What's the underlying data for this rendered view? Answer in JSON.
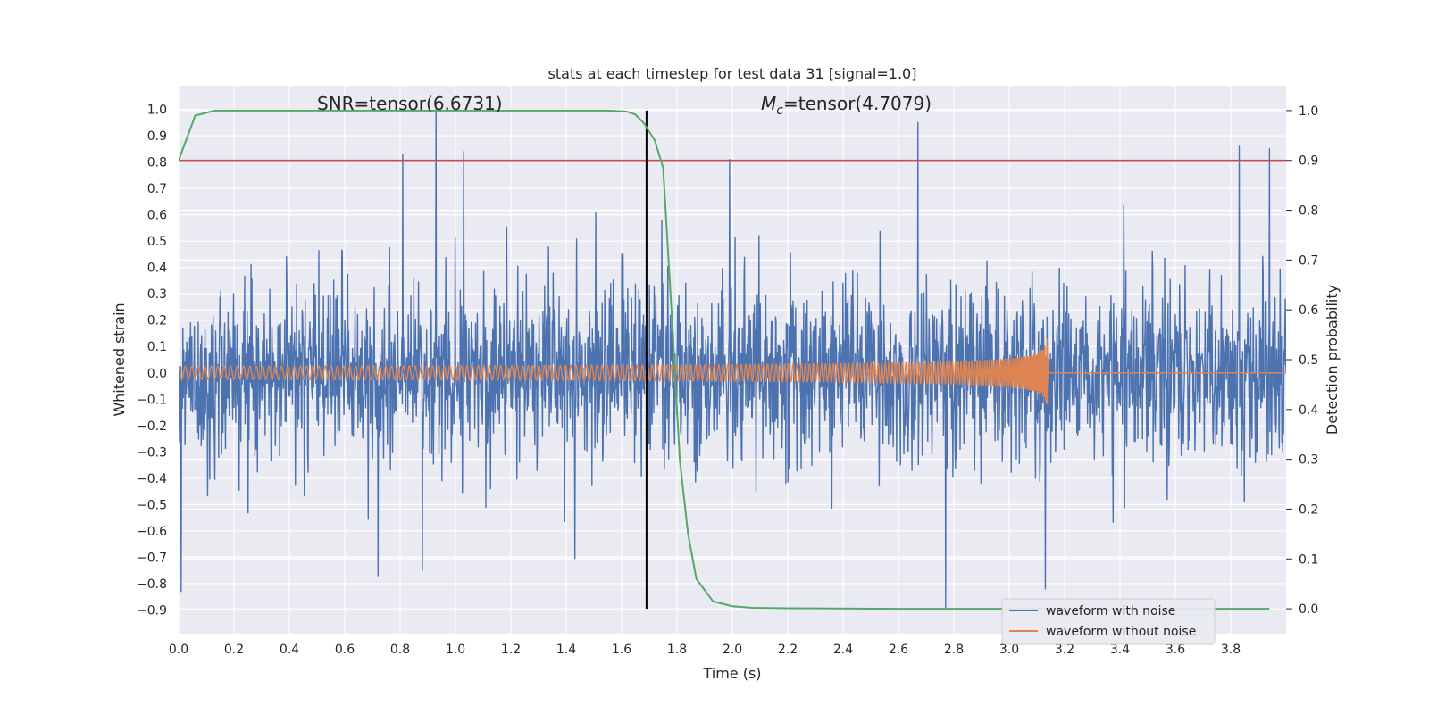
{
  "chart_data": {
    "type": "line",
    "title": "stats at each timestep for test data 31 [signal=1.0]",
    "xlabel": "Time (s)",
    "ylabel_left": "Whitened strain",
    "ylabel_right": "Detection probability",
    "xlim": [
      0.0,
      4.0
    ],
    "ylim_left": [
      -0.99,
      1.09
    ],
    "ylim_right": [
      -0.05,
      1.05
    ],
    "x_ticks": [
      0.0,
      0.2,
      0.4,
      0.6,
      0.8,
      1.0,
      1.2,
      1.4,
      1.6,
      1.8,
      2.0,
      2.2,
      2.4,
      2.6,
      2.8,
      3.0,
      3.2,
      3.4,
      3.6,
      3.8
    ],
    "x_tick_labels": [
      "0.0",
      "0.2",
      "0.4",
      "0.6",
      "0.8",
      "1.0",
      "1.2",
      "1.4",
      "1.6",
      "1.8",
      "2.0",
      "2.2",
      "2.4",
      "2.6",
      "2.8",
      "3.0",
      "3.2",
      "3.4",
      "3.6",
      "3.8"
    ],
    "y_left_ticks": [
      1.0,
      0.9,
      0.8,
      0.7,
      0.6,
      0.5,
      0.4,
      0.3,
      0.2,
      0.1,
      0.0,
      -0.1,
      -0.2,
      -0.3,
      -0.4,
      -0.5,
      -0.6,
      -0.7,
      -0.8,
      -0.9
    ],
    "y_left_tick_labels": [
      "1.0",
      "0.9",
      "0.8",
      "0.7",
      "0.6",
      "0.5",
      "0.4",
      "0.3",
      "0.2",
      "0.1",
      "0.0",
      "−0.1",
      "−0.2",
      "−0.3",
      "−0.4",
      "−0.5",
      "−0.6",
      "−0.7",
      "−0.8",
      "−0.9"
    ],
    "y_right_ticks": [
      1.0,
      0.9,
      0.8,
      0.7,
      0.6,
      0.5,
      0.4,
      0.3,
      0.2,
      0.1,
      0.0
    ],
    "y_right_tick_labels": [
      "1.0",
      "0.9",
      "0.8",
      "0.7",
      "0.6",
      "0.5",
      "0.4",
      "0.3",
      "0.2",
      "0.1",
      "0.0"
    ],
    "annotations": {
      "snr": "SNR=tensor(6.6731)",
      "mc_symbol": "M",
      "mc_subscript": "c",
      "mc_value": "=tensor(4.7079)"
    },
    "series": [
      {
        "name": "waveform with noise",
        "color": "#4c72b0",
        "axis": "left",
        "description_type": "noise",
        "x_range": [
          0.0,
          4.0
        ],
        "typical_amplitude": 0.45,
        "notable_peaks": [
          {
            "x": 0.93,
            "y": 1.0
          },
          {
            "x": 1.03,
            "y": 0.84
          },
          {
            "x": 0.81,
            "y": 0.83
          },
          {
            "x": 2.67,
            "y": 0.95
          },
          {
            "x": 1.99,
            "y": 0.81
          },
          {
            "x": 3.83,
            "y": 0.86
          },
          {
            "x": 3.94,
            "y": 0.85
          },
          {
            "x": 0.01,
            "y": -0.83
          },
          {
            "x": 2.77,
            "y": -0.89
          },
          {
            "x": 3.13,
            "y": -0.82
          },
          {
            "x": 0.72,
            "y": -0.77
          },
          {
            "x": 0.88,
            "y": -0.75
          }
        ]
      },
      {
        "name": "waveform without noise",
        "color": "#dd8452",
        "axis": "left",
        "description_type": "chirp",
        "x_range": [
          0.0,
          3.14
        ],
        "start_amplitude": 0.025,
        "merger_time": 3.14,
        "peak_amplitude": 0.18,
        "post_merger_value": 0.0
      },
      {
        "name": "detection probability",
        "color": "#55a868",
        "axis": "right",
        "x": [
          0.0,
          0.06,
          0.13,
          0.2,
          0.4,
          0.6,
          0.8,
          1.0,
          1.2,
          1.4,
          1.55,
          1.62,
          1.65,
          1.68,
          1.72,
          1.75,
          1.78,
          1.81,
          1.84,
          1.87,
          1.93,
          2.0,
          2.07,
          2.2,
          2.6,
          3.0,
          3.5,
          3.94
        ],
        "y": [
          0.9,
          0.99,
          1.0,
          1.0,
          1.0,
          1.0,
          1.0,
          1.0,
          1.0,
          1.0,
          1.0,
          0.998,
          0.992,
          0.975,
          0.94,
          0.885,
          0.6,
          0.3,
          0.15,
          0.06,
          0.015,
          0.005,
          0.002,
          0.001,
          0.0,
          0.0,
          0.0,
          0.0
        ]
      }
    ],
    "reference_lines": [
      {
        "orientation": "horizontal",
        "axis": "right",
        "value": 0.9,
        "color": "#c44e52"
      },
      {
        "orientation": "vertical",
        "value": 1.69,
        "color": "#000000",
        "y_range_right": [
          0.0,
          1.0
        ]
      }
    ],
    "legend": {
      "placement": "lower-right",
      "entries": [
        {
          "label": "waveform with noise",
          "color": "#4c72b0"
        },
        {
          "label": "waveform without noise",
          "color": "#dd8452"
        }
      ]
    },
    "grid": true,
    "colors": {
      "plot_background": "#eaeaf2",
      "grid": "#ffffff",
      "text": "#262626"
    }
  }
}
